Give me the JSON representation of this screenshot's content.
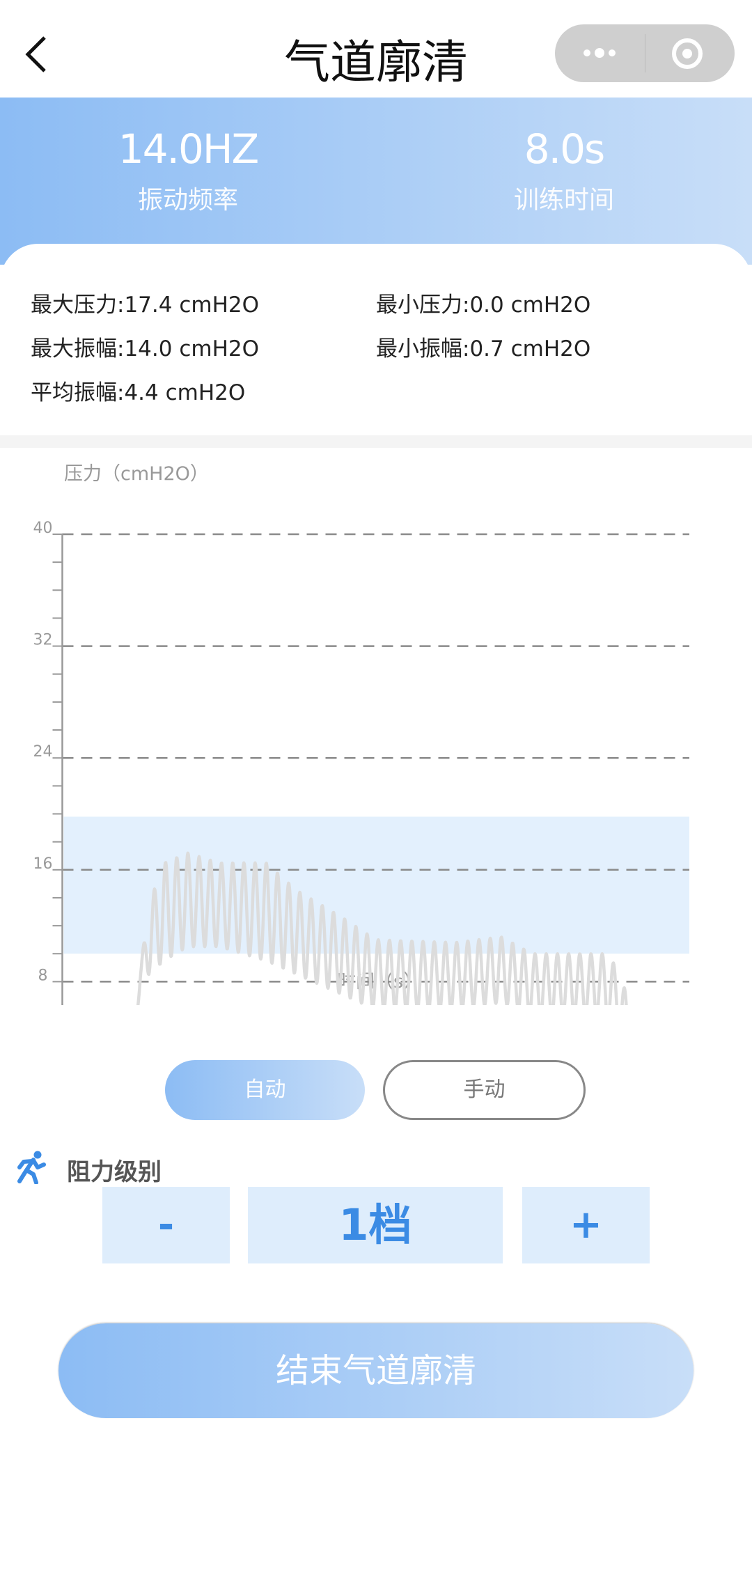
{
  "nav": {
    "title": "气道廓清",
    "back_icon": "chevron-left-icon",
    "more_icon": "more-dots-icon",
    "close_icon": "target-circle-icon"
  },
  "header": {
    "frequency_value": "14.0HZ",
    "frequency_label": "振动频率",
    "time_value": "8.0s",
    "time_label": "训练时间"
  },
  "stats": {
    "max_pressure": "最大压力:17.4 cmH2O",
    "min_pressure": "最小压力:0.0 cmH2O",
    "max_amplitude": "最大振幅:14.0 cmH2O",
    "min_amplitude": "最小振幅:0.7 cmH2O",
    "avg_amplitude": "平均振幅:4.4 cmH2O"
  },
  "chart_data": {
    "type": "line",
    "ylabel": "压力（cmH2O）",
    "xlabel": "时间（s）",
    "xlim": [
      0,
      4.0
    ],
    "ylim": [
      0,
      40
    ],
    "yticks": [
      "0",
      "8",
      "16",
      "24",
      "32",
      "40"
    ],
    "xticks": [
      "0",
      "1",
      "2",
      "3"
    ],
    "grid": "dashed horizontal",
    "target_band": [
      10,
      19.8
    ],
    "band_color": "#e3f0fd",
    "line_color": "#dcdcdc",
    "oscillation_hz": 14,
    "baseline": [
      [
        0,
        2
      ],
      [
        0.05,
        1.6
      ],
      [
        0.1,
        1.4
      ],
      [
        0.15,
        1.7
      ],
      [
        0.2,
        1.3
      ],
      [
        0.25,
        0.5
      ],
      [
        0.3,
        0
      ],
      [
        0.33,
        0.8
      ],
      [
        0.36,
        0
      ],
      [
        0.41,
        0
      ]
    ],
    "envelope": {
      "t": [
        0.42,
        0.5,
        0.55,
        0.65,
        0.8,
        1.0,
        1.3,
        1.5,
        1.8,
        2.0,
        2.5,
        2.8,
        3.0,
        3.45,
        3.55,
        3.65,
        3.75,
        3.85,
        3.95
      ],
      "upper": [
        0,
        9,
        13.5,
        16.5,
        17.2,
        16.5,
        16.5,
        14.5,
        12.5,
        11,
        10.8,
        11.2,
        10,
        10,
        9,
        5,
        3,
        2,
        0
      ],
      "lower": [
        0,
        8,
        8.5,
        9.5,
        10.5,
        10.5,
        9.5,
        8.5,
        7,
        6,
        6,
        6.5,
        5.5,
        5.5,
        4.5,
        1.5,
        1.5,
        1.5,
        0
      ]
    }
  },
  "modes": {
    "auto": "自动",
    "manual": "手动",
    "selected": "auto"
  },
  "resistance": {
    "icon": "running-person-icon",
    "label": "阻力级别",
    "minus": "-",
    "value": "1档",
    "plus": "+"
  },
  "end_button": "结束气道廓清",
  "colors": {
    "accent": "#3b8be4",
    "gradient_start": "#8cbcf4",
    "gradient_end": "#c8def8",
    "stepper_bg": "#deedfc"
  }
}
